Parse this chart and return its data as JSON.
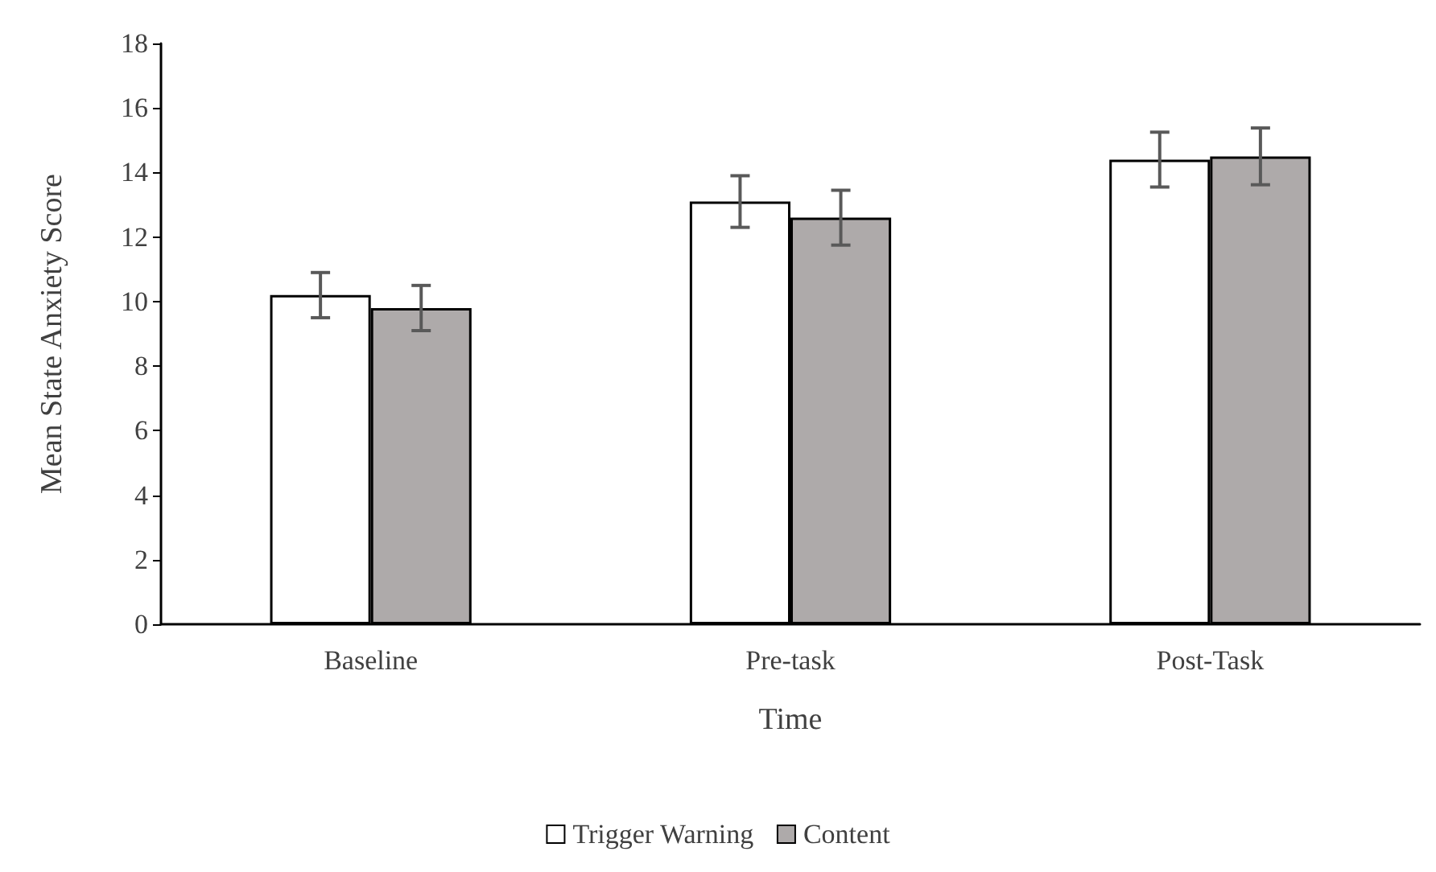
{
  "chart_data": {
    "type": "bar",
    "xlabel": "Time",
    "ylabel": "Mean State Anxiety Score",
    "categories": [
      "Baseline",
      "Pre-task",
      "Post-Task"
    ],
    "series": [
      {
        "name": "Trigger Warning",
        "color": "#ffffff",
        "values": [
          10.2,
          13.1,
          14.4
        ],
        "errors": [
          0.7,
          0.8,
          0.85
        ]
      },
      {
        "name": "Content",
        "color": "#aeaaaa",
        "values": [
          9.8,
          12.6,
          14.5
        ],
        "errors": [
          0.7,
          0.85,
          0.88
        ]
      }
    ],
    "ylim": [
      0,
      18
    ],
    "yticks": [
      0,
      2,
      4,
      6,
      8,
      10,
      12,
      14,
      16,
      18
    ],
    "grid": false,
    "legend": "bottom"
  }
}
